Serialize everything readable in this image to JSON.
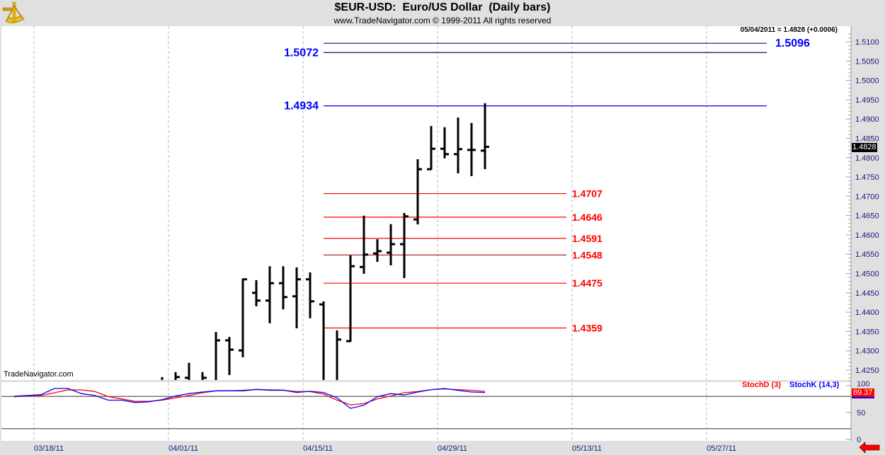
{
  "header": {
    "title": "$EUR-USD:  Euro/US Dollar  (Daily bars)",
    "subtitle": "www.TradeNavigator.com © 1999-2011 All rights reserved",
    "logo_icon": "sextant-icon"
  },
  "readout": "05/04/2011 = 1.4828 (+0.0006)",
  "watermark": "TradeNavigator.com",
  "colors": {
    "bars": "#000000",
    "support": "#ff0000",
    "resistance": "#0000ff",
    "stochD": "#ff0000",
    "stochK": "#0000ff",
    "axis_text": "#1a1a80"
  },
  "chart_data": [
    {
      "type": "ohlc",
      "ylim": [
        1.4222,
        1.512
      ],
      "y_ticks": [
        "1.5100",
        "1.5050",
        "1.5000",
        "1.4950",
        "1.4900",
        "1.4850",
        "1.4800",
        "1.4750",
        "1.4700",
        "1.4650",
        "1.4600",
        "1.4550",
        "1.4500",
        "1.4450",
        "1.4400",
        "1.4350",
        "1.4300",
        "1.4250"
      ],
      "x_ticks": [
        "03/18/11",
        "04/01/11",
        "04/15/11",
        "04/29/11",
        "05/13/11",
        "05/27/11"
      ],
      "grid": "vertical dashed",
      "last_price": "1.4828",
      "bars": [
        {
          "date": "03/31/11",
          "o": 1.419,
          "h": 1.423,
          "l": 1.415,
          "c": 1.4215
        },
        {
          "date": "04/01/11",
          "o": 1.418,
          "h": 1.4243,
          "l": 1.416,
          "c": 1.4232
        },
        {
          "date": "04/04/11",
          "o": 1.423,
          "h": 1.4267,
          "l": 1.419,
          "c": 1.421
        },
        {
          "date": "04/05/11",
          "o": 1.42,
          "h": 1.4243,
          "l": 1.418,
          "c": 1.423
        },
        {
          "date": "04/06/11",
          "o": 1.422,
          "h": 1.4347,
          "l": 1.421,
          "c": 1.4327
        },
        {
          "date": "04/07/11",
          "o": 1.4327,
          "h": 1.4334,
          "l": 1.4239,
          "c": 1.4303
        },
        {
          "date": "04/08/11",
          "o": 1.4301,
          "h": 1.4485,
          "l": 1.4285,
          "c": 1.4485
        },
        {
          "date": "04/11/11",
          "o": 1.445,
          "h": 1.4481,
          "l": 1.4417,
          "c": 1.443
        },
        {
          "date": "04/12/11",
          "o": 1.443,
          "h": 1.4517,
          "l": 1.4373,
          "c": 1.4475
        },
        {
          "date": "04/13/11",
          "o": 1.4475,
          "h": 1.4517,
          "l": 1.4409,
          "c": 1.4439
        },
        {
          "date": "04/14/11",
          "o": 1.4441,
          "h": 1.4514,
          "l": 1.436,
          "c": 1.4485
        },
        {
          "date": "04/15/11",
          "o": 1.4485,
          "h": 1.4501,
          "l": 1.4386,
          "c": 1.4428
        },
        {
          "date": "04/18/11",
          "o": 1.442,
          "h": 1.4426,
          "l": 1.418,
          "c": 1.42
        },
        {
          "date": "04/19/11",
          "o": 1.421,
          "h": 1.4351,
          "l": 1.419,
          "c": 1.4329
        },
        {
          "date": "04/20/11",
          "o": 1.4325,
          "h": 1.4545,
          "l": 1.4325,
          "c": 1.4519
        },
        {
          "date": "04/21/11",
          "o": 1.4517,
          "h": 1.4648,
          "l": 1.4501,
          "c": 1.4549
        },
        {
          "date": "04/22/11",
          "o": 1.4552,
          "h": 1.4587,
          "l": 1.4532,
          "c": 1.4558
        },
        {
          "date": "04/25/11",
          "o": 1.4554,
          "h": 1.4626,
          "l": 1.4523,
          "c": 1.4576
        },
        {
          "date": "04/26/11",
          "o": 1.4576,
          "h": 1.4655,
          "l": 1.449,
          "c": 1.4648
        },
        {
          "date": "04/27/11",
          "o": 1.464,
          "h": 1.4794,
          "l": 1.4629,
          "c": 1.477
        },
        {
          "date": "04/28/11",
          "o": 1.477,
          "h": 1.488,
          "l": 1.477,
          "c": 1.4823
        },
        {
          "date": "04/29/11",
          "o": 1.4823,
          "h": 1.4877,
          "l": 1.48,
          "c": 1.4809
        },
        {
          "date": "05/02/11",
          "o": 1.4809,
          "h": 1.4902,
          "l": 1.4761,
          "c": 1.4822
        },
        {
          "date": "05/03/11",
          "o": 1.482,
          "h": 1.4888,
          "l": 1.4754,
          "c": 1.482
        },
        {
          "date": "05/04/11",
          "o": 1.4818,
          "h": 1.4939,
          "l": 1.4772,
          "c": 1.4828
        }
      ],
      "levels": [
        {
          "value": 1.5096,
          "label": "1.5096",
          "color": "#101070",
          "side": "right"
        },
        {
          "value": 1.5072,
          "label": "1.5072",
          "color": "#101070",
          "side": "left"
        },
        {
          "value": 1.4934,
          "label": "1.4934",
          "color": "#0000ff",
          "side": "left"
        },
        {
          "value": 1.4707,
          "label": "1.4707",
          "color": "#ff0000",
          "side": "red"
        },
        {
          "value": 1.4646,
          "label": "1.4646",
          "color": "#ff0000",
          "side": "red"
        },
        {
          "value": 1.4591,
          "label": "1.4591",
          "color": "#ff0000",
          "side": "red"
        },
        {
          "value": 1.4548,
          "label": "1.4548",
          "color": "#a01010",
          "side": "red"
        },
        {
          "value": 1.4475,
          "label": "1.4475",
          "color": "#ff0000",
          "side": "red"
        },
        {
          "value": 1.4359,
          "label": "1.4359",
          "color": "#ff0000",
          "side": "red"
        }
      ]
    },
    {
      "type": "line",
      "ylim": [
        0,
        100
      ],
      "y_ticks": [
        "100",
        "50",
        "0"
      ],
      "reference_lines": [
        80,
        20
      ],
      "last_value": "89.37",
      "series": [
        {
          "name": "StochD (3)",
          "color": "#ff0000",
          "values": [
            79.2,
            81.7,
            81.7,
            86.9,
            92.1,
            92.1,
            89.1,
            79.6,
            75.3,
            70.9,
            70.9,
            73.0,
            77.4,
            81.7,
            86.9,
            90.4,
            90.4,
            91.3,
            93.0,
            91.3,
            91.3,
            89.1,
            89.1,
            84.3,
            73.0,
            64.4,
            66.6,
            75.3,
            80.8,
            86.9,
            89.1,
            92.6,
            93.9,
            92.6,
            91.3,
            89.4
          ]
        },
        {
          "name": "StochK (14,3)",
          "color": "#0000ff",
          "values": [
            80.4,
            81.7,
            83.4,
            94.7,
            94.7,
            85.2,
            81.7,
            73.0,
            73.0,
            68.7,
            70.0,
            73.9,
            80.8,
            85.2,
            88.2,
            90.4,
            90.4,
            90.4,
            93.0,
            92.1,
            91.7,
            87.4,
            89.5,
            87.4,
            77.4,
            57.8,
            63.5,
            79.5,
            85.2,
            82.6,
            88.2,
            92.6,
            94.7,
            91.3,
            88.2,
            87.4
          ]
        }
      ]
    }
  ]
}
